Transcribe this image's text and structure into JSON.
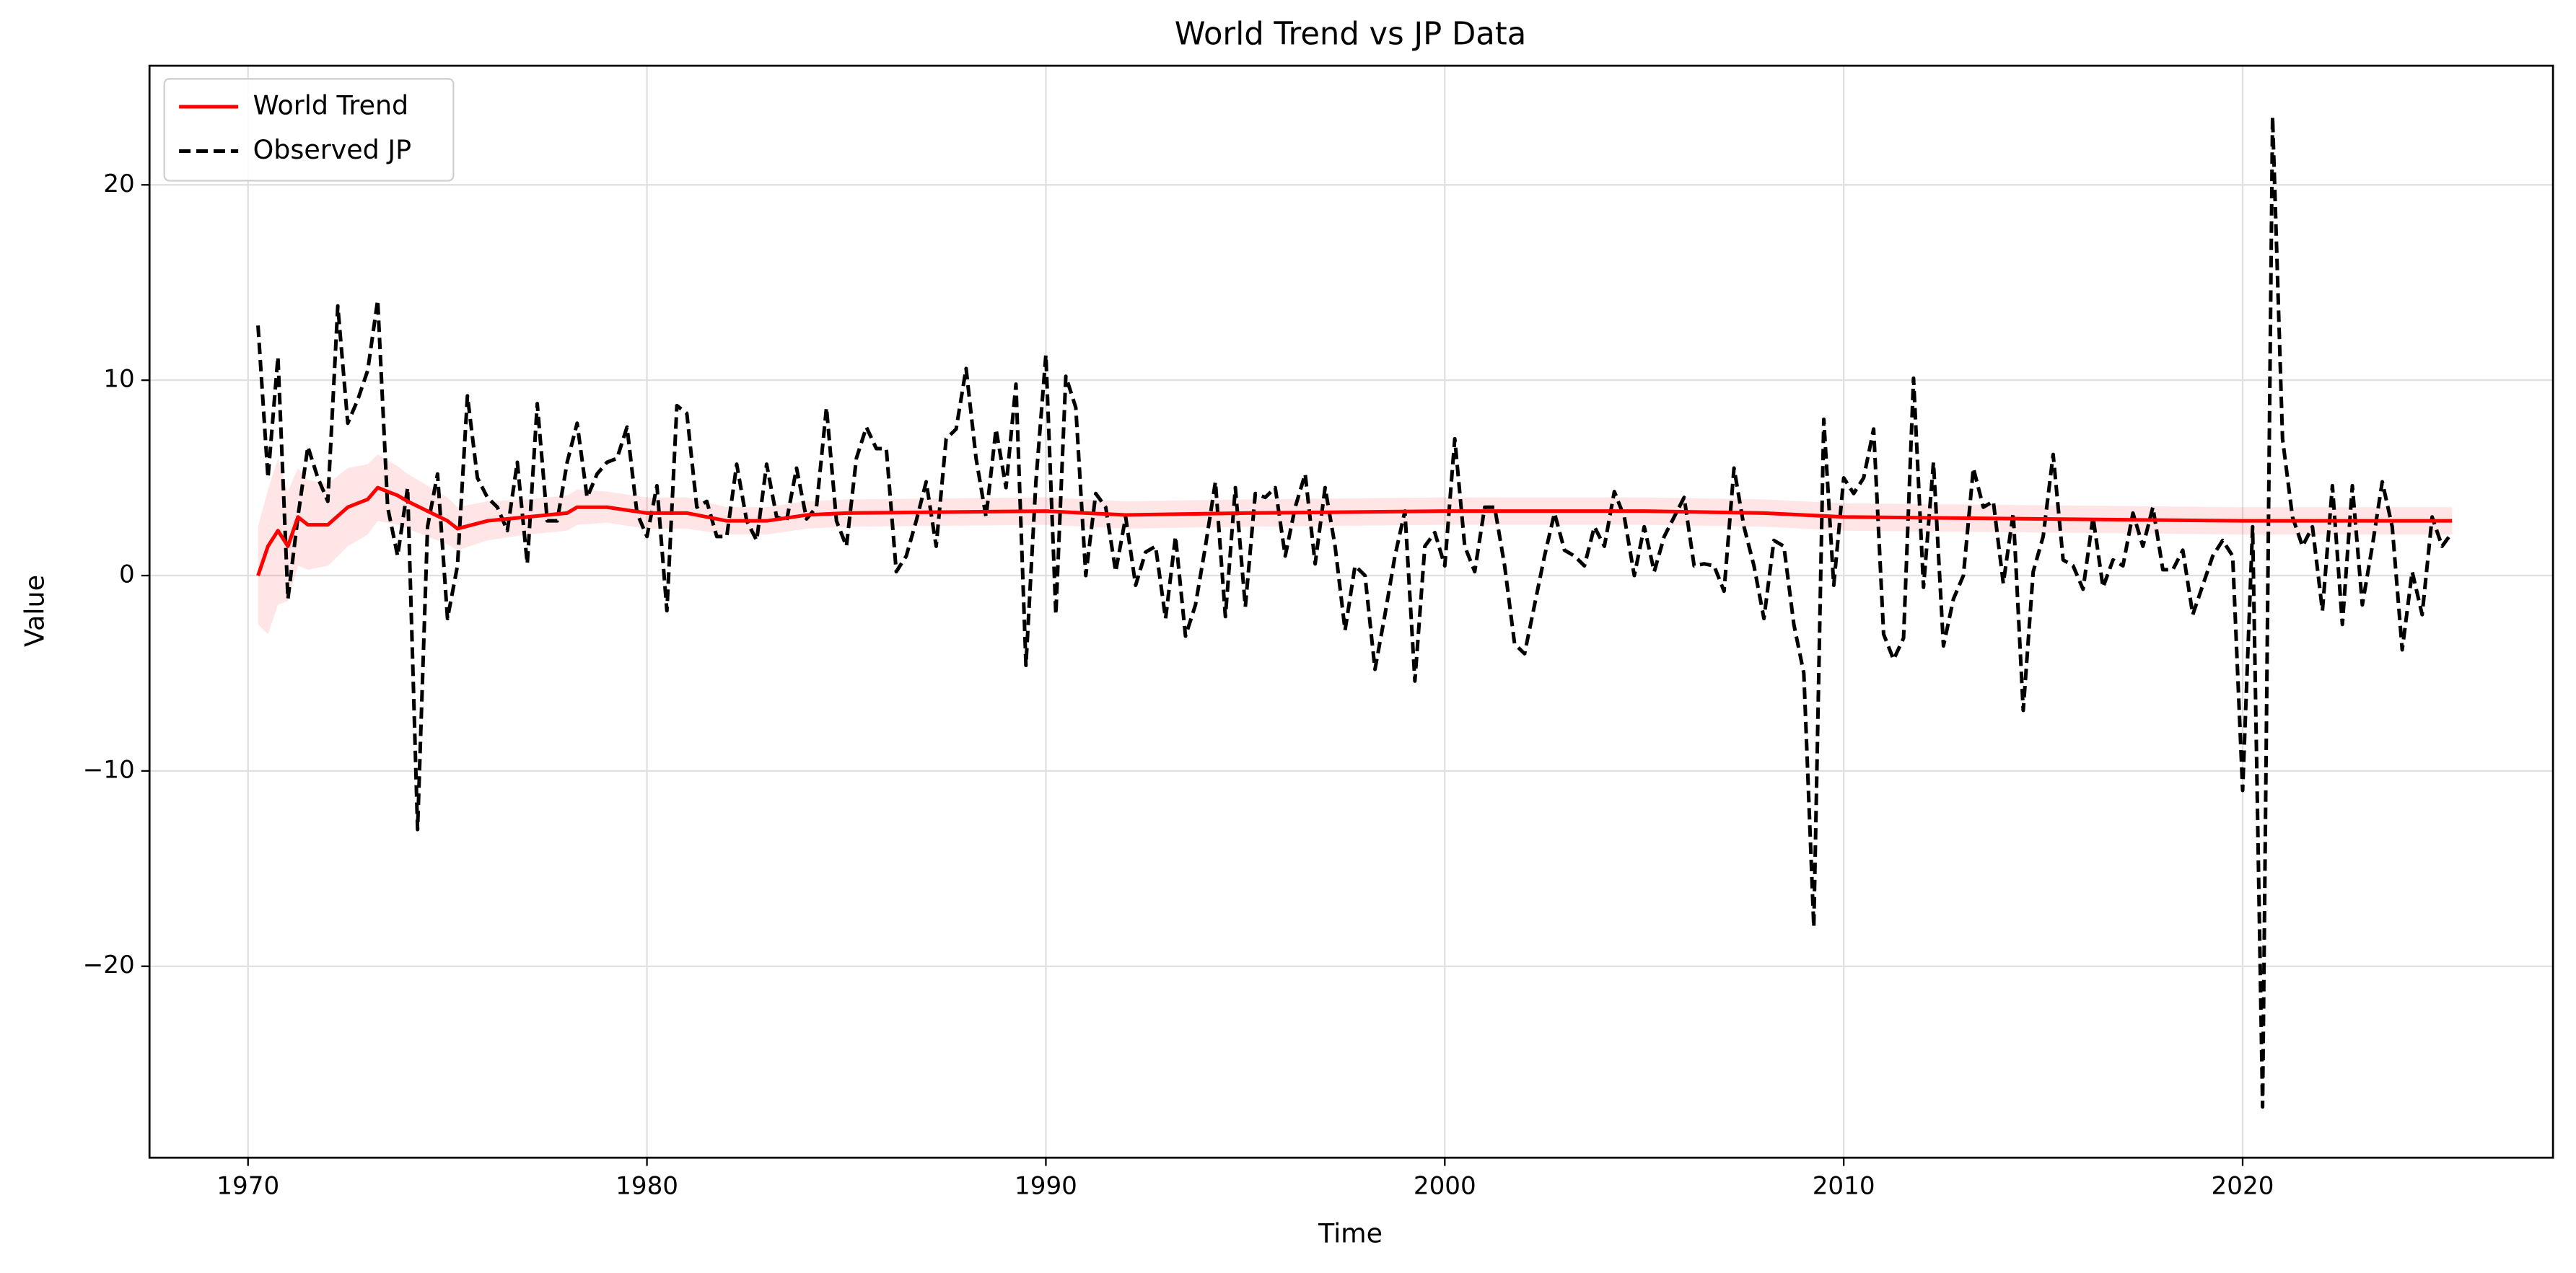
{
  "chart_data": {
    "type": "line",
    "title": "World Trend vs JP Data",
    "x_label": "Time",
    "y_label": "Value",
    "xlim": [
      1967.53,
      2027.78
    ],
    "ylim": [
      -29.8,
      26.1
    ],
    "xticks": [
      1970,
      1980,
      1990,
      2000,
      2010,
      2020
    ],
    "yticks": [
      {
        "value": -20,
        "label": "−20"
      },
      {
        "value": -10,
        "label": "−10"
      },
      0,
      10,
      20
    ],
    "grid": true,
    "legend": "upper left",
    "series": [
      {
        "name": "World Trend",
        "color": "#ff0000",
        "linestyle": "solid",
        "x": [
          1970.25,
          1970.5,
          1970.75,
          1971,
          1971.25,
          1971.5,
          1972,
          1972.5,
          1973,
          1973.25,
          1973.75,
          1974,
          1975,
          1975.25,
          1976,
          1977,
          1978,
          1978.25,
          1979,
          1980,
          1981,
          1982,
          1983,
          1984,
          1985,
          1990,
          1992,
          1995,
          2000,
          2005,
          2008,
          2010,
          2015,
          2020,
          2025.25
        ],
        "values": [
          0,
          1.5,
          2.3,
          1.5,
          3,
          2.6,
          2.6,
          3.5,
          3.9,
          4.5,
          4.1,
          3.8,
          2.8,
          2.4,
          2.8,
          3,
          3.2,
          3.5,
          3.5,
          3.2,
          3.2,
          2.8,
          2.8,
          3.1,
          3.2,
          3.3,
          3.1,
          3.2,
          3.3,
          3.3,
          3.2,
          3,
          2.9,
          2.8,
          2.8
        ]
      },
      {
        "name": "Observed JP",
        "color": "#000000",
        "linestyle": "dashed",
        "x": [
          1970.25,
          1970.5,
          1970.75,
          1971,
          1971.25,
          1971.5,
          1971.75,
          1972,
          1972.25,
          1972.5,
          1972.75,
          1973,
          1973.25,
          1973.5,
          1973.75,
          1974,
          1974.25,
          1974.5,
          1974.75,
          1975,
          1975.25,
          1975.5,
          1975.75,
          1976,
          1976.25,
          1976.5,
          1976.75,
          1977,
          1977.25,
          1977.5,
          1977.75,
          1978,
          1978.25,
          1978.5,
          1978.75,
          1979,
          1979.25,
          1979.5,
          1979.75,
          1980,
          1980.25,
          1980.5,
          1980.75,
          1981,
          1981.25,
          1981.5,
          1981.75,
          1982,
          1982.25,
          1982.5,
          1982.75,
          1983,
          1983.25,
          1983.5,
          1983.75,
          1984,
          1984.25,
          1984.5,
          1984.75,
          1985,
          1985.25,
          1985.5,
          1985.75,
          1986,
          1986.25,
          1986.5,
          1986.75,
          1987,
          1987.25,
          1987.5,
          1987.75,
          1988,
          1988.25,
          1988.5,
          1988.75,
          1989,
          1989.25,
          1989.5,
          1989.75,
          1990,
          1990.25,
          1990.5,
          1990.75,
          1991,
          1991.25,
          1991.5,
          1991.75,
          1992,
          1992.25,
          1992.5,
          1992.75,
          1993,
          1993.25,
          1993.5,
          1993.75,
          1994,
          1994.25,
          1994.5,
          1994.75,
          1995,
          1995.25,
          1995.5,
          1995.75,
          1996,
          1996.25,
          1996.5,
          1996.75,
          1997,
          1997.25,
          1997.5,
          1997.75,
          1998,
          1998.25,
          1998.5,
          1998.75,
          1999,
          1999.25,
          1999.5,
          1999.75,
          2000,
          2000.25,
          2000.5,
          2000.75,
          2001,
          2001.25,
          2001.5,
          2001.75,
          2002,
          2002.25,
          2002.5,
          2002.75,
          2003,
          2003.25,
          2003.5,
          2003.75,
          2004,
          2004.25,
          2004.5,
          2004.75,
          2005,
          2005.25,
          2005.5,
          2005.75,
          2006,
          2006.25,
          2006.5,
          2006.75,
          2007,
          2007.25,
          2007.5,
          2007.75,
          2008,
          2008.25,
          2008.5,
          2008.75,
          2009,
          2009.25,
          2009.5,
          2009.75,
          2010,
          2010.25,
          2010.5,
          2010.75,
          2011,
          2011.25,
          2011.5,
          2011.75,
          2012,
          2012.25,
          2012.5,
          2012.75,
          2013,
          2013.25,
          2013.5,
          2013.75,
          2014,
          2014.25,
          2014.5,
          2014.75,
          2015,
          2015.25,
          2015.5,
          2015.75,
          2016,
          2016.25,
          2016.5,
          2016.75,
          2017,
          2017.25,
          2017.5,
          2017.75,
          2018,
          2018.25,
          2018.5,
          2018.75,
          2019,
          2019.25,
          2019.5,
          2019.75,
          2020,
          2020.25,
          2020.5,
          2020.75,
          2021,
          2021.25,
          2021.5,
          2021.75,
          2022,
          2022.25,
          2022.5,
          2022.75,
          2023,
          2023.25,
          2023.5,
          2023.75,
          2024,
          2024.25,
          2024.5,
          2024.75,
          2025,
          2025.25
        ],
        "values": [
          12.8,
          5,
          11.2,
          -1.2,
          3,
          6.6,
          5,
          3.8,
          13.8,
          7.8,
          9,
          10.5,
          14.1,
          3.5,
          1,
          4.5,
          -13,
          2.5,
          5.2,
          -2.2,
          0.5,
          9.2,
          5,
          4,
          3.5,
          2.3,
          5.8,
          0.6,
          8.8,
          2.8,
          2.8,
          5.8,
          7.8,
          4,
          5.2,
          5.8,
          6,
          7.6,
          3.2,
          2,
          4.6,
          -1.8,
          8.7,
          8.3,
          3.5,
          3.8,
          2,
          2,
          5.7,
          2.8,
          1.8,
          5.7,
          3,
          2.8,
          5.5,
          2.9,
          3.5,
          8.6,
          2.8,
          1.5,
          6,
          7.6,
          6.5,
          6.5,
          0.2,
          1,
          2.8,
          4.8,
          1.5,
          7,
          7.5,
          10.6,
          6,
          3,
          7.5,
          4.5,
          9.8,
          -4.6,
          4.8,
          11.3,
          -2,
          10.2,
          8.6,
          0,
          4.2,
          3.5,
          0.2,
          3,
          -0.5,
          1.2,
          1.5,
          -2.2,
          2,
          -3.1,
          -1.5,
          1.5,
          4.8,
          -2.1,
          4.5,
          -1.6,
          4.2,
          4,
          4.5,
          1,
          3.5,
          5.2,
          0.6,
          4.5,
          1.5,
          -2.8,
          0.5,
          0,
          -4.8,
          -2,
          1,
          3.3,
          -5.4,
          1.5,
          2.2,
          0.5,
          7,
          1.5,
          0.2,
          3.5,
          3.5,
          0.5,
          -3.5,
          -4,
          -1.5,
          1,
          3.2,
          1.3,
          1,
          0.5,
          2.5,
          1.5,
          4.3,
          3,
          0,
          2.5,
          0.2,
          2,
          3,
          4,
          0.5,
          0.6,
          0.5,
          -0.8,
          5.5,
          2.5,
          0.5,
          -2.2,
          1.8,
          1.5,
          -2.5,
          -5,
          -18,
          8,
          -0.5,
          5,
          4.2,
          5,
          7.5,
          -3,
          -4.3,
          -3.2,
          10.1,
          -0.6,
          5.8,
          -3.6,
          -1.2,
          0,
          5.5,
          3.5,
          3.8,
          -0.4,
          3.2,
          -6.9,
          0.2,
          2,
          6.2,
          0.8,
          0.5,
          -0.7,
          3,
          -0.6,
          0.8,
          0.5,
          3.2,
          1.5,
          3.5,
          0.3,
          0.3,
          1.3,
          -2,
          -0.5,
          1,
          1.8,
          1,
          -11,
          2.5,
          -27.2,
          23.5,
          7,
          3,
          1.5,
          2.5,
          -1.8,
          4.6,
          -2.5,
          4.6,
          -1.5,
          1.5,
          4.8,
          2.5,
          -3.8,
          0.2,
          -2,
          3,
          1.5,
          2.2
        ]
      }
    ],
    "band": {
      "color": "#ff0000",
      "opacity": 0.1,
      "x": [
        1970.25,
        1970.5,
        1970.75,
        1971,
        1971.25,
        1971.5,
        1972,
        1972.5,
        1973,
        1973.25,
        1973.75,
        1974,
        1975,
        1975.25,
        1976,
        1977,
        1978,
        1978.25,
        1979,
        1980,
        1981,
        1982,
        1983,
        1984,
        1985,
        1990,
        1992,
        1995,
        2000,
        2005,
        2008,
        2010,
        2015,
        2020,
        2025.25
      ],
      "lower": [
        -2.5,
        -3,
        -1.5,
        -1.3,
        0.5,
        0.3,
        0.5,
        1.5,
        2.1,
        2.8,
        2.6,
        2.4,
        1.6,
        1.3,
        1.8,
        2.1,
        2.3,
        2.6,
        2.7,
        2.4,
        2.4,
        2.1,
        2.1,
        2.4,
        2.5,
        2.6,
        2.4,
        2.5,
        2.6,
        2.6,
        2.5,
        2.3,
        2.2,
        2.1,
        2.1
      ],
      "upper": [
        2.5,
        4.4,
        6,
        4.3,
        5.5,
        4.9,
        4.7,
        5.5,
        5.7,
        6.2,
        5.6,
        5.2,
        4,
        3.5,
        3.8,
        3.9,
        4.1,
        4.4,
        4.3,
        4,
        4,
        3.5,
        3.5,
        3.8,
        3.9,
        4,
        3.8,
        3.9,
        4,
        4,
        3.9,
        3.7,
        3.6,
        3.5,
        3.5
      ]
    }
  }
}
